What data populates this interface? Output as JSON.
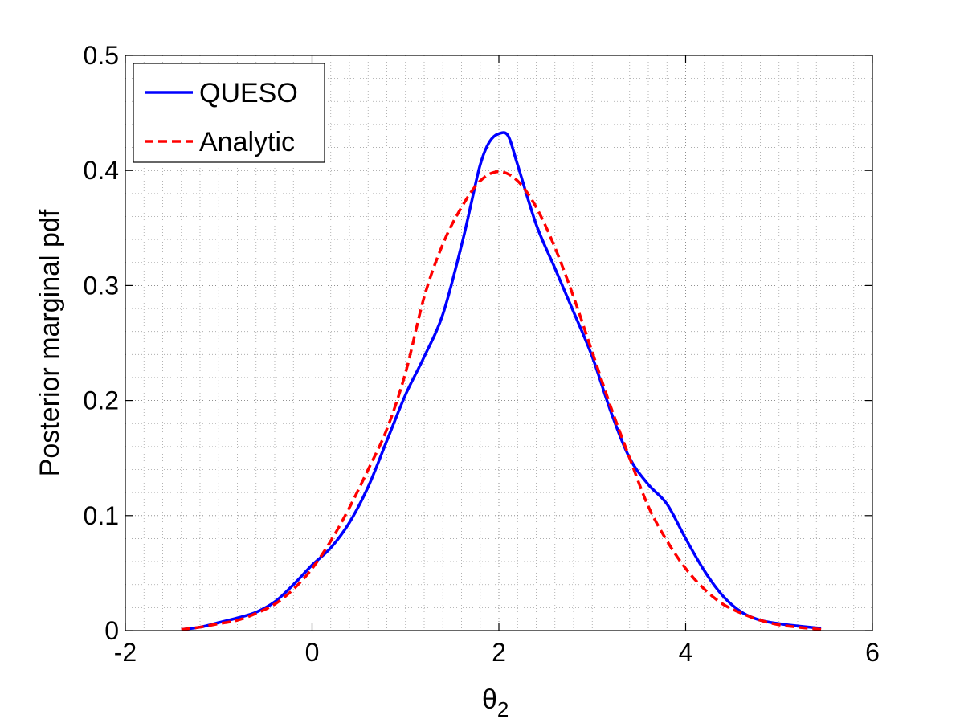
{
  "chart_data": {
    "type": "line",
    "title": "",
    "xlabel_main": "θ",
    "xlabel_sub": "2",
    "ylabel": "Posterior marginal pdf",
    "xlim": [
      -2,
      6
    ],
    "ylim": [
      0,
      0.5
    ],
    "xticks": [
      "-2",
      "0",
      "2",
      "4",
      "6"
    ],
    "yticks": [
      "0",
      "0.1",
      "0.2",
      "0.3",
      "0.4",
      "0.5"
    ],
    "grid": true,
    "minor_grid": true,
    "legend_position": "top-left",
    "series": [
      {
        "name": "QUESO",
        "color": "#0000ff",
        "style": "solid",
        "x": [
          -1.4,
          -1.2,
          -1.0,
          -0.8,
          -0.6,
          -0.4,
          -0.2,
          0.0,
          0.2,
          0.4,
          0.6,
          0.8,
          1.0,
          1.2,
          1.4,
          1.6,
          1.7,
          1.8,
          1.9,
          2.0,
          2.1,
          2.2,
          2.4,
          2.6,
          2.8,
          3.0,
          3.2,
          3.4,
          3.6,
          3.8,
          4.0,
          4.2,
          4.4,
          4.6,
          4.8,
          5.0,
          5.2,
          5.45
        ],
        "y": [
          0.001,
          0.003,
          0.007,
          0.011,
          0.016,
          0.025,
          0.04,
          0.057,
          0.072,
          0.094,
          0.125,
          0.165,
          0.205,
          0.238,
          0.275,
          0.335,
          0.37,
          0.405,
          0.425,
          0.432,
          0.43,
          0.405,
          0.353,
          0.315,
          0.277,
          0.238,
          0.19,
          0.15,
          0.127,
          0.11,
          0.08,
          0.052,
          0.03,
          0.016,
          0.009,
          0.006,
          0.004,
          0.002
        ]
      },
      {
        "name": "Analytic",
        "color": "#ff0000",
        "style": "dashed",
        "x": [
          -1.4,
          -1.2,
          -1.0,
          -0.8,
          -0.6,
          -0.4,
          -0.2,
          0.0,
          0.2,
          0.4,
          0.6,
          0.8,
          1.0,
          1.2,
          1.4,
          1.6,
          1.8,
          2.0,
          2.2,
          2.4,
          2.6,
          2.8,
          3.0,
          3.2,
          3.4,
          3.6,
          3.8,
          4.0,
          4.2,
          4.4,
          4.6,
          4.8,
          5.0,
          5.2,
          5.45
        ],
        "y": [
          0.001,
          0.003,
          0.006,
          0.009,
          0.015,
          0.023,
          0.036,
          0.054,
          0.078,
          0.107,
          0.14,
          0.175,
          0.224,
          0.29,
          0.336,
          0.368,
          0.391,
          0.399,
          0.391,
          0.368,
          0.333,
          0.29,
          0.242,
          0.194,
          0.15,
          0.108,
          0.078,
          0.054,
          0.036,
          0.023,
          0.015,
          0.009,
          0.005,
          0.003,
          0.001
        ]
      }
    ]
  }
}
